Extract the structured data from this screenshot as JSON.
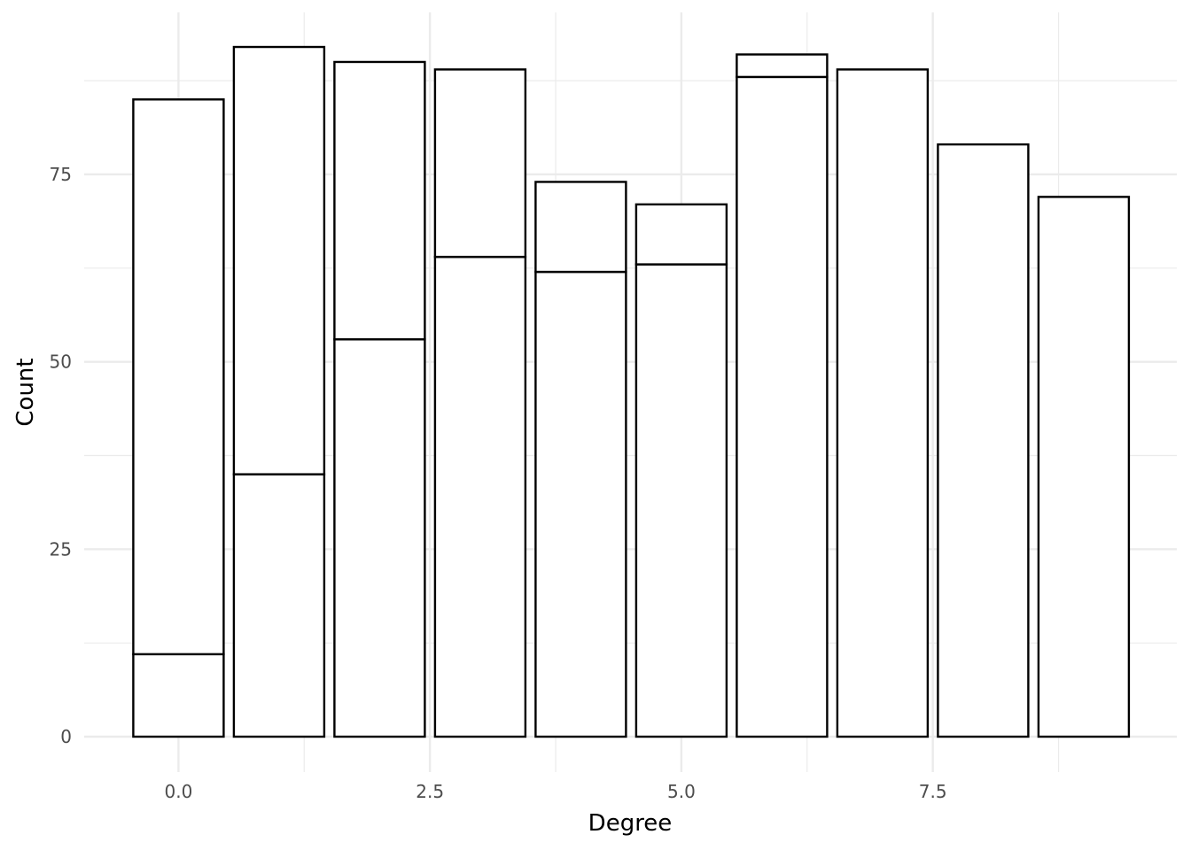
{
  "chart_data": {
    "type": "bar",
    "stacked": true,
    "title": "",
    "xlabel": "Degree",
    "ylabel": "Count",
    "x": [
      0,
      1,
      2,
      3,
      4,
      5,
      6,
      7,
      8,
      9
    ],
    "series": [
      {
        "values": [
          11,
          35,
          53,
          64,
          62,
          63,
          88,
          89,
          79,
          72
        ]
      },
      {
        "values": [
          74,
          57,
          37,
          25,
          12,
          8,
          3,
          0,
          0,
          0
        ]
      }
    ],
    "totals": [
      85,
      92,
      90,
      89,
      74,
      71,
      91,
      89,
      79,
      72
    ],
    "xlim": [
      -0.5,
      9.5
    ],
    "ylim": [
      0,
      92
    ],
    "x_ticks": [
      "0.0",
      "2.5",
      "5.0",
      "7.5"
    ],
    "y_ticks": [
      "0",
      "25",
      "50",
      "75"
    ],
    "bar_fill": "#ffffff",
    "bar_outline": "#000000",
    "grid": true,
    "grid_color": "#ebebeb",
    "legend": "none"
  }
}
